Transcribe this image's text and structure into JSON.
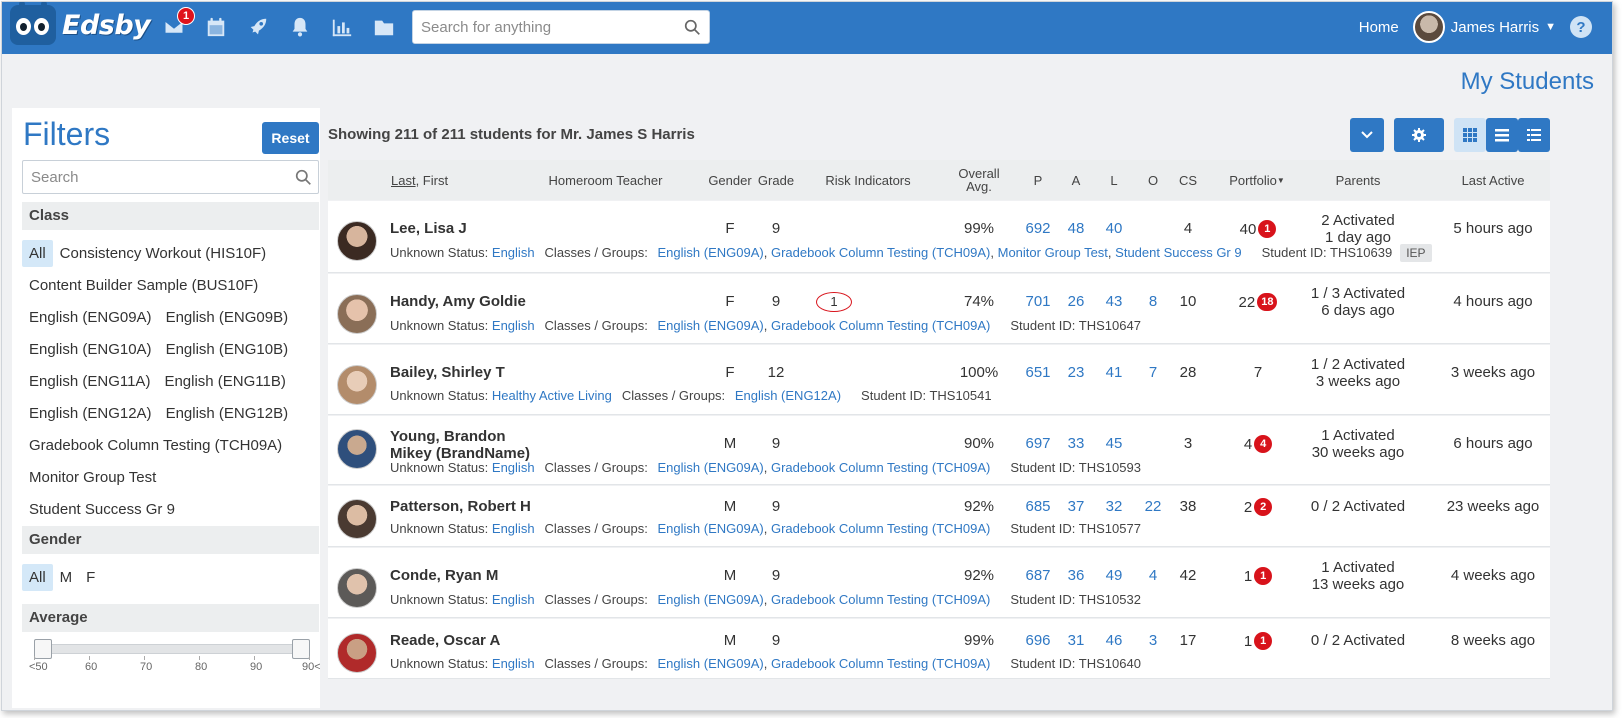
{
  "app": {
    "brand": "Edsby",
    "search_placeholder": "Search for anything",
    "mail_count": "1",
    "home_label": "Home",
    "user_name": "James Harris",
    "help_label": "?",
    "page_title": "My Students"
  },
  "colors": {
    "brand": "#2f78c4",
    "badge": "#d8131b",
    "selected_chip": "#d4e8f8"
  },
  "icons": [
    "mail-icon",
    "calendar-icon",
    "rocket-icon",
    "bell-icon",
    "chart-icon",
    "folder-icon",
    "search-icon",
    "chevron-down-icon",
    "gear-icon",
    "grid-view-icon",
    "list-view-icon",
    "compact-list-icon",
    "help-icon"
  ],
  "filters": {
    "title": "Filters",
    "reset": "Reset",
    "search_placeholder": "Search",
    "class_heading": "Class",
    "classes": [
      "All",
      "Consistency Workout (HIS10F)",
      "Content Builder Sample (BUS10F)",
      "English (ENG09A)",
      "English (ENG09B)",
      "English (ENG10A)",
      "English (ENG10B)",
      "English (ENG11A)",
      "English (ENG11B)",
      "English (ENG12A)",
      "English (ENG12B)",
      "Gradebook Column Testing (TCH09A)",
      "Monitor Group Test",
      "Student Success Gr 9"
    ],
    "gender_heading": "Gender",
    "genders": [
      "All",
      "M",
      "F"
    ],
    "average_heading": "Average",
    "average_ticks": [
      "<50",
      "60",
      "70",
      "80",
      "90",
      "90<"
    ]
  },
  "main": {
    "showing": "Showing 211 of 211 students for Mr. James S Harris",
    "columns": {
      "last": "Last",
      "first": ", First",
      "homeroom": "Homeroom Teacher",
      "gender": "Gender",
      "grade": "Grade",
      "risk": "Risk Indicators",
      "overall": "Overall Avg.",
      "p": "P",
      "a": "A",
      "l": "L",
      "o": "O",
      "cs": "CS",
      "portfolio": "Portfolio",
      "parents": "Parents",
      "last_active": "Last Active"
    },
    "labels": {
      "status": "Unknown Status:",
      "classes": "Classes / Groups:"
    }
  },
  "students": [
    {
      "name": "Lee, Lisa J",
      "gender": "F",
      "grade": "9",
      "risk": "",
      "avg": "99%",
      "p": "692",
      "a": "48",
      "l": "40",
      "o": "",
      "cs": "4",
      "portfolio": "40",
      "portfolio_badge": "1",
      "parents_1": "2 Activated",
      "parents_2": "1 day ago",
      "last_active": "5 hours ago",
      "status_subject": "English",
      "classes": [
        "English (ENG09A)",
        "Gradebook Column Testing (TCH09A)",
        "Monitor Group Test",
        "Student Success Gr 9"
      ],
      "student_id": "Student ID: THS10639",
      "tag": "IEP"
    },
    {
      "name": "Handy, Amy Goldie",
      "gender": "F",
      "grade": "9",
      "risk": "1",
      "avg": "74%",
      "p": "701",
      "a": "26",
      "l": "43",
      "o": "8",
      "cs": "10",
      "portfolio": "22",
      "portfolio_badge": "18",
      "parents_1": "1 / 3 Activated",
      "parents_2": "6 days ago",
      "last_active": "4 hours ago",
      "status_subject": "English",
      "classes": [
        "English (ENG09A)",
        "Gradebook Column Testing (TCH09A)"
      ],
      "student_id": "Student ID: THS10647",
      "tag": ""
    },
    {
      "name": "Bailey, Shirley T",
      "gender": "F",
      "grade": "12",
      "risk": "",
      "avg": "100%",
      "p": "651",
      "a": "23",
      "l": "41",
      "o": "7",
      "cs": "28",
      "portfolio": "7",
      "portfolio_badge": "",
      "parents_1": "1 / 2 Activated",
      "parents_2": "3 weeks ago",
      "last_active": "3 weeks ago",
      "status_subject": "Healthy Active Living",
      "classes": [
        "English (ENG12A)"
      ],
      "student_id": "Student ID: THS10541",
      "tag": ""
    },
    {
      "name": "Young, Brandon",
      "name_2": "Mikey (BrandName)",
      "gender": "M",
      "grade": "9",
      "risk": "",
      "avg": "90%",
      "p": "697",
      "a": "33",
      "l": "45",
      "o": "",
      "cs": "3",
      "portfolio": "4",
      "portfolio_badge": "4",
      "parents_1": "1 Activated",
      "parents_2": "30 weeks ago",
      "last_active": "6 hours ago",
      "status_subject": "English",
      "classes": [
        "English (ENG09A)",
        "Gradebook Column Testing (TCH09A)"
      ],
      "student_id": "Student ID: THS10593",
      "tag": ""
    },
    {
      "name": "Patterson, Robert H",
      "gender": "M",
      "grade": "9",
      "risk": "",
      "avg": "92%",
      "p": "685",
      "a": "37",
      "l": "32",
      "o": "22",
      "cs": "38",
      "portfolio": "2",
      "portfolio_badge": "2",
      "parents_1": "0 / 2 Activated",
      "parents_2": "",
      "last_active": "23 weeks ago",
      "status_subject": "English",
      "classes": [
        "English (ENG09A)",
        "Gradebook Column Testing (TCH09A)"
      ],
      "student_id": "Student ID: THS10577",
      "tag": ""
    },
    {
      "name": "Conde, Ryan M",
      "gender": "M",
      "grade": "9",
      "risk": "",
      "avg": "92%",
      "p": "687",
      "a": "36",
      "l": "49",
      "o": "4",
      "cs": "42",
      "portfolio": "1",
      "portfolio_badge": "1",
      "parents_1": "1 Activated",
      "parents_2": "13 weeks ago",
      "last_active": "4 weeks ago",
      "status_subject": "English",
      "classes": [
        "English (ENG09A)",
        "Gradebook Column Testing (TCH09A)"
      ],
      "student_id": "Student ID: THS10532",
      "tag": ""
    },
    {
      "name": "Reade, Oscar A",
      "gender": "M",
      "grade": "9",
      "risk": "",
      "avg": "99%",
      "p": "696",
      "a": "31",
      "l": "46",
      "o": "3",
      "cs": "17",
      "portfolio": "1",
      "portfolio_badge": "1",
      "parents_1": "0 / 2 Activated",
      "parents_2": "",
      "last_active": "8 weeks ago",
      "status_subject": "English",
      "classes": [
        "English (ENG09A)",
        "Gradebook Column Testing (TCH09A)"
      ],
      "student_id": "Student ID: THS10640",
      "tag": ""
    }
  ]
}
